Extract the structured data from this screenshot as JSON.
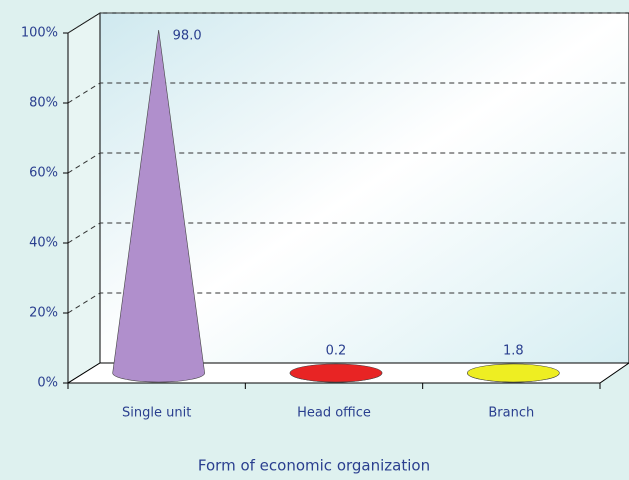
{
  "chart_data": {
    "type": "cone3d",
    "categories": [
      "Single unit",
      "Head office",
      "Branch"
    ],
    "values": [
      98.0,
      0.2,
      1.8
    ],
    "value_labels": [
      "98.0",
      "0.2",
      "1.8"
    ],
    "colors": [
      "#b08fcc",
      "#e82424",
      "#eeee22"
    ],
    "ylim": [
      0,
      100
    ],
    "yticks": [
      {
        "value": 0,
        "label": "0%"
      },
      {
        "value": 20,
        "label": "20%"
      },
      {
        "value": 40,
        "label": "40%"
      },
      {
        "value": 60,
        "label": "60%"
      },
      {
        "value": 80,
        "label": "80%"
      },
      {
        "value": 100,
        "label": "100%"
      }
    ],
    "xlabel": "Form of economic organization",
    "grid": true
  }
}
